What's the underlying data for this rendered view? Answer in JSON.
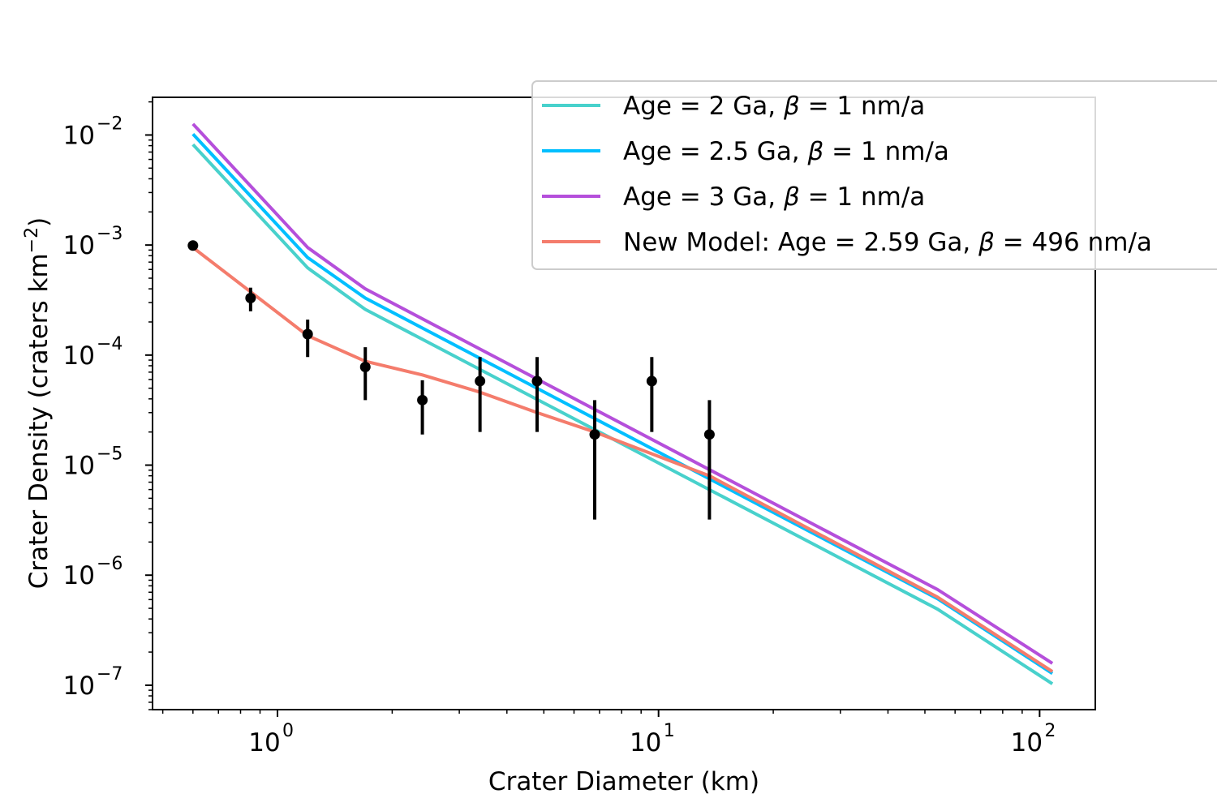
{
  "chart_data": {
    "type": "line",
    "xscale": "log",
    "yscale": "log",
    "xlim": [
      0.47,
      140
    ],
    "ylim": [
      6e-08,
      0.022
    ],
    "xlabel": "Crater Diameter (km)",
    "ylabel_main": "Crater Density (craters km",
    "ylabel_exp": "−2",
    "ylabel_close": ")",
    "x_ticks": [
      {
        "value": 1,
        "base": "10",
        "exp": "0"
      },
      {
        "value": 10,
        "base": "10",
        "exp": "1"
      },
      {
        "value": 100,
        "base": "10",
        "exp": "2"
      }
    ],
    "y_ticks": [
      {
        "value": 0.01,
        "base": "10",
        "exp": "−2"
      },
      {
        "value": 0.001,
        "base": "10",
        "exp": "−3"
      },
      {
        "value": 0.0001,
        "base": "10",
        "exp": "−4"
      },
      {
        "value": 1e-05,
        "base": "10",
        "exp": "−5"
      },
      {
        "value": 1e-06,
        "base": "10",
        "exp": "−6"
      },
      {
        "value": 1e-07,
        "base": "10",
        "exp": "−7"
      }
    ],
    "legend_position": "top-right",
    "series": [
      {
        "name_prefix": "Age = 2 Ga, ",
        "name_symbol": "β",
        "name_suffix": " = 1 nm/a",
        "color": "#48d1cc",
        "x": [
          0.6,
          1.2,
          1.7,
          54,
          108
        ],
        "y": [
          0.0082,
          0.00062,
          0.00026,
          4.9e-07,
          1.03e-07
        ]
      },
      {
        "name_prefix": "Age = 2.5 Ga, ",
        "name_symbol": "β",
        "name_suffix": " = 1 nm/a",
        "color": "#00bfff",
        "x": [
          0.6,
          1.2,
          1.7,
          54,
          108
        ],
        "y": [
          0.0102,
          0.00077,
          0.00033,
          6.1e-07,
          1.28e-07
        ]
      },
      {
        "name_prefix": "Age = 3 Ga, ",
        "name_symbol": "β",
        "name_suffix": " = 1 nm/a",
        "color": "#b54fdb",
        "x": [
          0.6,
          1.2,
          1.7,
          54,
          108
        ],
        "y": [
          0.0126,
          0.00095,
          0.0004,
          7.4e-07,
          1.58e-07
        ]
      },
      {
        "name_prefix": "New Model: Age = 2.59 Ga, ",
        "name_symbol": "β",
        "name_suffix": " = 496 nm/a",
        "color": "#f47c6c",
        "x": [
          0.6,
          1.2,
          1.7,
          2.4,
          3.4,
          4.8,
          6.8,
          13.6,
          54,
          108
        ],
        "y": [
          0.00095,
          0.00015,
          8.8e-05,
          6.6e-05,
          4.6e-05,
          3e-05,
          2e-05,
          8e-06,
          6.3e-07,
          1.33e-07
        ]
      }
    ],
    "observations": {
      "color": "#000000",
      "points": [
        {
          "x": 0.6,
          "y": 0.00099,
          "ylo": 0.00093,
          "yhi": 0.00106
        },
        {
          "x": 0.85,
          "y": 0.00033,
          "ylo": 0.00025,
          "yhi": 0.00041
        },
        {
          "x": 1.2,
          "y": 0.000155,
          "ylo": 9.6e-05,
          "yhi": 0.00021
        },
        {
          "x": 1.7,
          "y": 7.8e-05,
          "ylo": 3.9e-05,
          "yhi": 0.000118
        },
        {
          "x": 2.4,
          "y": 3.9e-05,
          "ylo": 1.9e-05,
          "yhi": 5.9e-05
        },
        {
          "x": 3.4,
          "y": 5.8e-05,
          "ylo": 2e-05,
          "yhi": 9.6e-05
        },
        {
          "x": 4.8,
          "y": 5.8e-05,
          "ylo": 2e-05,
          "yhi": 9.6e-05
        },
        {
          "x": 6.8,
          "y": 1.9e-05,
          "ylo": 3.2e-06,
          "yhi": 3.9e-05
        },
        {
          "x": 9.6,
          "y": 5.8e-05,
          "ylo": 2e-05,
          "yhi": 9.6e-05
        },
        {
          "x": 13.6,
          "y": 1.9e-05,
          "ylo": 3.2e-06,
          "yhi": 3.9e-05
        }
      ]
    }
  }
}
